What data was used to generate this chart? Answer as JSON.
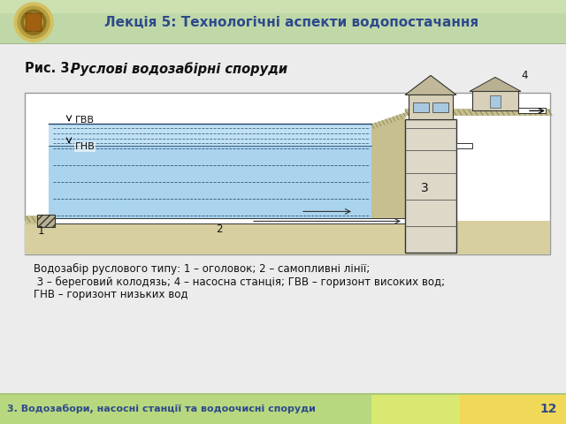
{
  "title": "Лекція 5: Технологічні аспекти водопостачання",
  "title_color": "#2E4A8B",
  "footer_text": "3. Водозабори, насосні станції та водоочисні споруди",
  "footer_number": "12",
  "slide_bg": "#ececec",
  "fig_title_normal": "Рис. 3. ",
  "fig_title_italic": "Руслові водозабірні споруди",
  "caption_line1": "Водозабір руслового типу: 1 – оголовок; 2 – самопливні лінії;",
  "caption_line2": " 3 – береговий колодязь; 4 – насосна станція; ГВВ – горизонт високих вод;",
  "caption_line3": "ГНВ – горизонт низьких вод",
  "header_color1": "#b8d4a0",
  "header_color2": "#c8ddb0",
  "footer_color1": "#b8d890",
  "footer_color2": "#e8e898",
  "footer_color3": "#f0d870"
}
